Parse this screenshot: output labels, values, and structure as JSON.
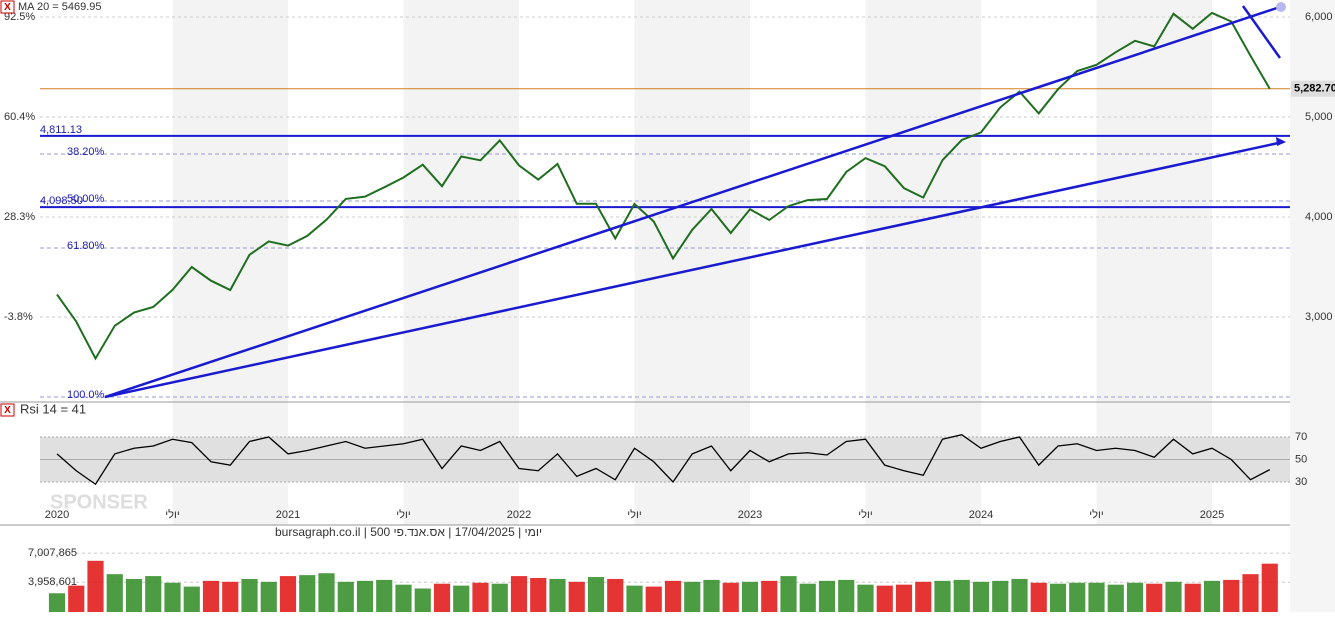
{
  "header": {
    "close_icon": "X",
    "ma_label": "MA 20 = 5469.95",
    "rsi_label": "Rsi 14 = 41",
    "sponsor": "SPONSER",
    "watermark": "יומי | 17/04/2025 | אס.אנד.פי 500 | bursagraph.co.il"
  },
  "chart_data": [
    {
      "type": "line",
      "series": [
        {
          "color": "#1f6e1f",
          "values": [
            3225,
            2954,
            2585,
            2912,
            3044,
            3100,
            3271,
            3500,
            3363,
            3270,
            3622,
            3756,
            3714,
            3811,
            3973,
            4181,
            4204,
            4297,
            4395,
            4523,
            4308,
            4605,
            4567,
            4766,
            4516,
            4374,
            4530,
            4132,
            4132,
            3785,
            4130,
            3955,
            3586,
            3872,
            4080,
            3840,
            4077,
            3970,
            4109,
            4169,
            4180,
            4450,
            4589,
            4508,
            4288,
            4194,
            4568,
            4770,
            4846,
            5096,
            5254,
            5036,
            5278,
            5460,
            5522,
            5648,
            5762,
            5705,
            6032,
            5882,
            6041,
            5955,
            5612,
            5283
          ]
        }
      ],
      "ylim": [
        2170,
        6170
      ],
      "yticks": [
        {
          "value": 3000,
          "label": "3,000"
        },
        {
          "value": 4000,
          "label": "4,000"
        },
        {
          "value": 5000,
          "label": "5,000"
        },
        {
          "value": 6000,
          "label": "6,000"
        }
      ],
      "yticks_percent": [
        {
          "value": 3000,
          "label": "-3.8%"
        },
        {
          "value": 4000,
          "label": "28.3%"
        },
        {
          "value": 5000,
          "label": "60.4%"
        },
        {
          "value": 6000,
          "label": "92.5%"
        }
      ],
      "last_value": {
        "value": 5282.7,
        "label": "5,282.70"
      },
      "levels": [
        {
          "value": 4811.13,
          "label": "4,811.13"
        },
        {
          "value": 4098.5,
          "label": "4,098.50"
        }
      ],
      "fib_levels": [
        {
          "value": 2200,
          "label": "100.0%"
        },
        {
          "value": 4630,
          "label": "38.20%"
        },
        {
          "value": 4160,
          "label": "50.00%"
        },
        {
          "value": 3690,
          "label": "61.80%"
        }
      ],
      "grid": true
    },
    {
      "type": "line",
      "categories": [
        "2020",
        null,
        null,
        null,
        null,
        null,
        "יולי",
        null,
        null,
        null,
        null,
        null,
        "2021",
        null,
        null,
        null,
        null,
        null,
        "יולי",
        null,
        null,
        null,
        null,
        null,
        "2022",
        null,
        null,
        null,
        null,
        null,
        "יולי",
        null,
        null,
        null,
        null,
        null,
        "2023",
        null,
        null,
        null,
        null,
        null,
        "יולי",
        null,
        null,
        null,
        null,
        null,
        "2024",
        null,
        null,
        null,
        null,
        null,
        "יולי",
        null,
        null,
        null,
        null,
        null,
        "2025",
        null,
        null,
        null
      ],
      "series": [
        {
          "color": "#000000",
          "values": [
            55,
            40,
            28,
            55,
            60,
            62,
            68,
            65,
            48,
            45,
            66,
            70,
            55,
            58,
            62,
            66,
            60,
            62,
            64,
            68,
            42,
            62,
            58,
            66,
            42,
            40,
            55,
            35,
            42,
            32,
            60,
            48,
            30,
            55,
            62,
            40,
            58,
            48,
            55,
            56,
            54,
            66,
            68,
            45,
            40,
            36,
            68,
            72,
            60,
            66,
            70,
            45,
            62,
            64,
            58,
            60,
            58,
            52,
            68,
            55,
            60,
            50,
            32,
            41
          ]
        }
      ],
      "ylim": [
        14,
        94
      ],
      "yticks": [
        30,
        50,
        70
      ],
      "band": [
        30,
        70
      ]
    },
    {
      "type": "bar",
      "values": [
        2800000,
        3600000,
        6200000,
        4800000,
        4300000,
        4600000,
        3900000,
        3500000,
        4100000,
        4000000,
        4300000,
        4000000,
        4600000,
        4700000,
        4900000,
        4000000,
        4100000,
        4200000,
        3700000,
        3300000,
        3800000,
        3600000,
        3900000,
        3800000,
        4600000,
        4400000,
        4300000,
        4000000,
        4500000,
        4300000,
        3600000,
        3500000,
        4100000,
        4000000,
        4200000,
        3900000,
        4000000,
        4100000,
        4600000,
        3800000,
        4100000,
        4200000,
        3700000,
        3600000,
        3700000,
        4000000,
        4100000,
        4200000,
        4000000,
        4100000,
        4300000,
        3900000,
        3800000,
        3900000,
        3900000,
        3700000,
        3900000,
        3800000,
        4000000,
        3800000,
        4100000,
        4200000,
        4800000,
        5900000
      ],
      "up_color": "#2e8b22",
      "down_color": "#e01010",
      "ylim": [
        0,
        9426000
      ],
      "yticks": [
        {
          "value": 3958601,
          "label": "3,958,601"
        },
        {
          "value": 7007865,
          "label": "7,007,865"
        }
      ]
    }
  ]
}
